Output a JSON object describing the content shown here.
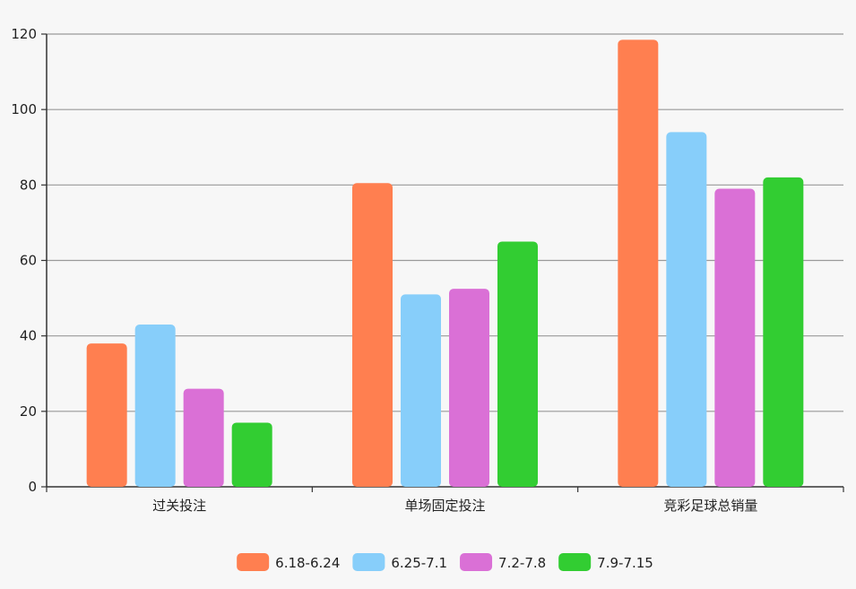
{
  "chart_data": {
    "type": "bar",
    "categories": [
      "过关投注",
      "单场固定投注",
      "竞彩足球总销量"
    ],
    "series": [
      {
        "name": "6.18-6.24",
        "color": "#ff7f50",
        "values": [
          38,
          80.5,
          118.5
        ]
      },
      {
        "name": "6.25-7.1",
        "color": "#87cefa",
        "values": [
          43,
          51,
          94
        ]
      },
      {
        "name": "7.2-7.8",
        "color": "#da70d6",
        "values": [
          26,
          52.5,
          79
        ]
      },
      {
        "name": "7.9-7.15",
        "color": "#32cd32",
        "values": [
          17,
          65,
          82
        ]
      }
    ],
    "ylim": [
      0,
      120
    ],
    "yticks": [
      0,
      20,
      40,
      60,
      80,
      100,
      120
    ],
    "grid": true,
    "legend_position": "bottom-center",
    "title": "",
    "xlabel": "",
    "ylabel": ""
  }
}
